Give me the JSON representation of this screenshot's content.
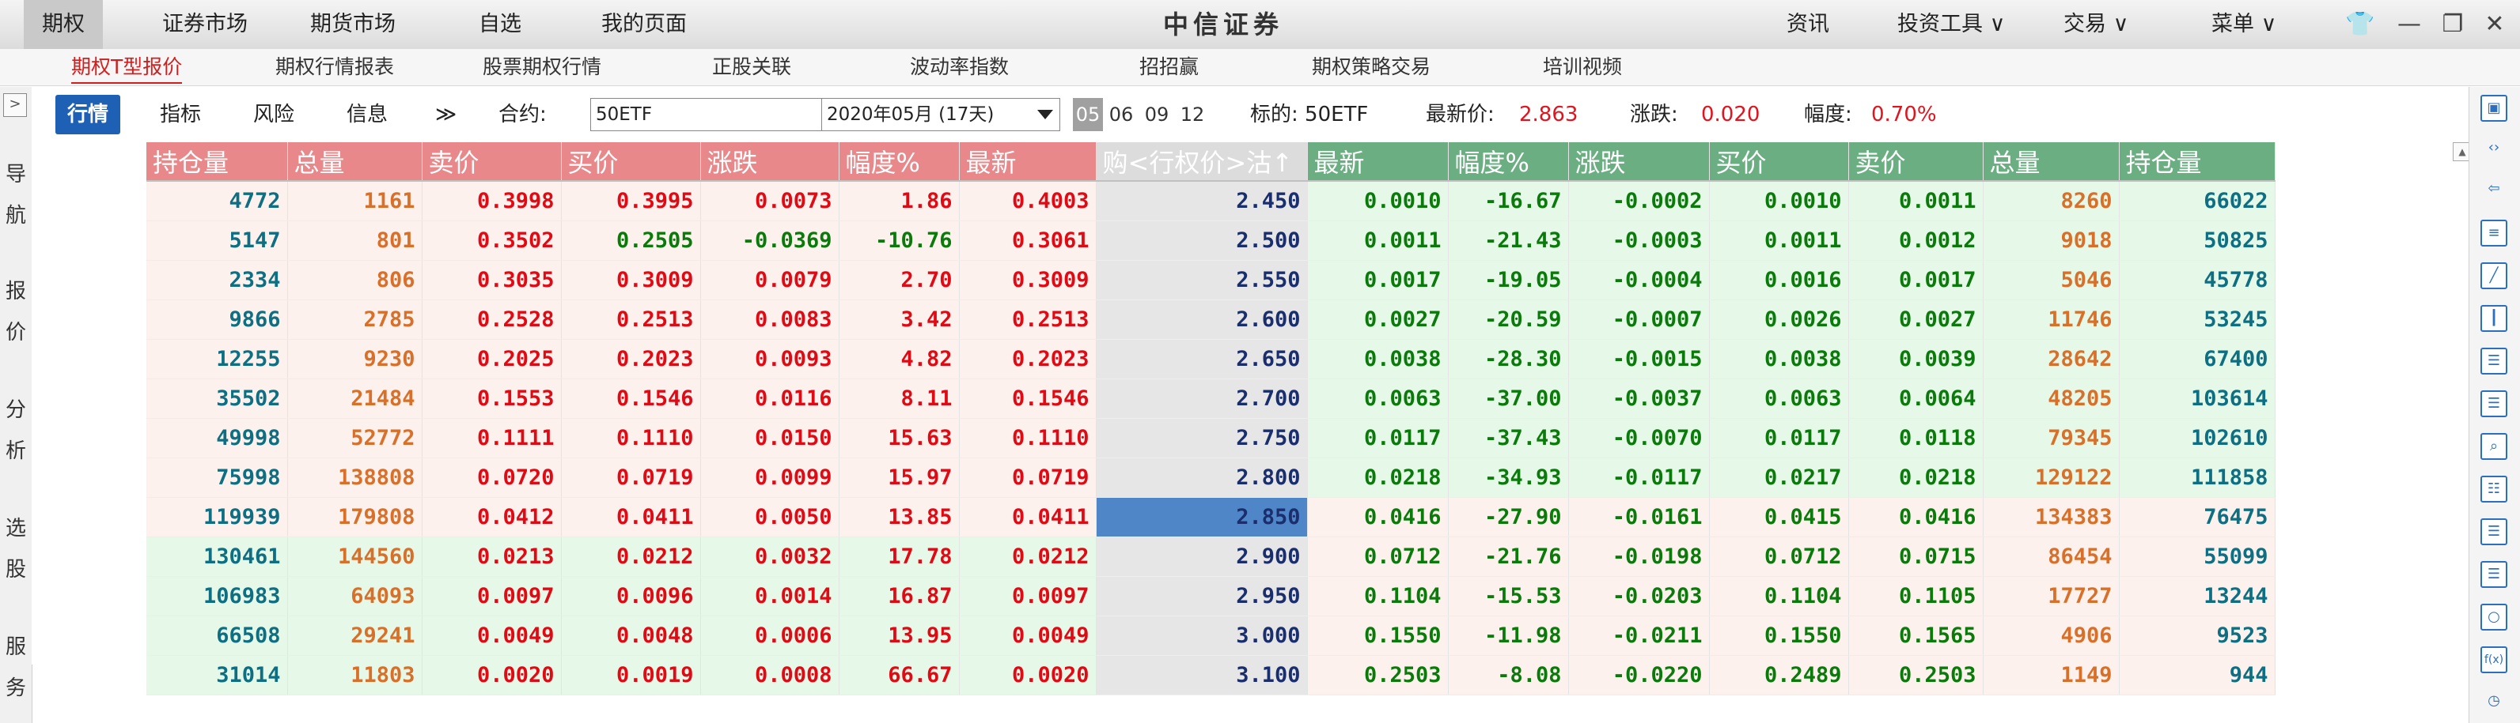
{
  "topbar": {
    "items": [
      "期权",
      "证券市场",
      "期货市场",
      "自选",
      "我的页面"
    ],
    "brand": "中信证券",
    "right_items": [
      "资讯",
      "投资工具 ∨",
      "交易 ∨",
      "菜单 ∨"
    ]
  },
  "tabs": [
    "期权T型报价",
    "期权行情报表",
    "股票期权行情",
    "正股关联",
    "波动率指数",
    "招招赢",
    "期权策略交易",
    "培训视频"
  ],
  "toolbar": {
    "tab_quote": "行情",
    "tab_indicator": "指标",
    "tab_risk": "风险",
    "tab_info": "信息",
    "more": "≫",
    "contract_label": "合约:",
    "contract_value": "50ETF",
    "expiry_value": "2020年05月 (17天)",
    "months": [
      "05",
      "06",
      "09",
      "12"
    ],
    "underlying_label": "标的: 50ETF",
    "latest_label": "最新价:",
    "latest_value": "2.863",
    "change_label": "涨跌:",
    "change_value": "0.020",
    "pct_label": "幅度:",
    "pct_value": "0.70%"
  },
  "leftnav": [
    "导",
    "航",
    "报",
    "价",
    "分",
    "析",
    "选",
    "股",
    "服",
    "务"
  ],
  "headers": {
    "call": [
      "持仓量",
      "总量",
      "卖价",
      "买价",
      "涨跌",
      "幅度%",
      "最新"
    ],
    "mid": "购<行权价>沽↑",
    "put": [
      "最新",
      "幅度%",
      "涨跌",
      "买价",
      "卖价",
      "总量",
      "持仓量"
    ]
  },
  "rows": [
    {
      "c": [
        "4772",
        "1161",
        "0.3998",
        "0.3995",
        "0.0073",
        "1.86",
        "0.4003"
      ],
      "k": "2.450",
      "p": [
        "0.0010",
        "-16.67",
        "-0.0002",
        "0.0010",
        "0.0011",
        "8260",
        "66022"
      ]
    },
    {
      "c": [
        "5147",
        "801",
        "0.3502",
        "0.2505",
        "-0.0369",
        "-10.76",
        "0.3061"
      ],
      "k": "2.500",
      "p": [
        "0.0011",
        "-21.43",
        "-0.0003",
        "0.0011",
        "0.0012",
        "9018",
        "50825"
      ]
    },
    {
      "c": [
        "2334",
        "806",
        "0.3035",
        "0.3009",
        "0.0079",
        "2.70",
        "0.3009"
      ],
      "k": "2.550",
      "p": [
        "0.0017",
        "-19.05",
        "-0.0004",
        "0.0016",
        "0.0017",
        "5046",
        "45778"
      ]
    },
    {
      "c": [
        "9866",
        "2785",
        "0.2528",
        "0.2513",
        "0.0083",
        "3.42",
        "0.2513"
      ],
      "k": "2.600",
      "p": [
        "0.0027",
        "-20.59",
        "-0.0007",
        "0.0026",
        "0.0027",
        "11746",
        "53245"
      ]
    },
    {
      "c": [
        "12255",
        "9230",
        "0.2025",
        "0.2023",
        "0.0093",
        "4.82",
        "0.2023"
      ],
      "k": "2.650",
      "p": [
        "0.0038",
        "-28.30",
        "-0.0015",
        "0.0038",
        "0.0039",
        "28642",
        "67400"
      ]
    },
    {
      "c": [
        "35502",
        "21484",
        "0.1553",
        "0.1546",
        "0.0116",
        "8.11",
        "0.1546"
      ],
      "k": "2.700",
      "p": [
        "0.0063",
        "-37.00",
        "-0.0037",
        "0.0063",
        "0.0064",
        "48205",
        "103614"
      ]
    },
    {
      "c": [
        "49998",
        "52772",
        "0.1111",
        "0.1110",
        "0.0150",
        "15.63",
        "0.1110"
      ],
      "k": "2.750",
      "p": [
        "0.0117",
        "-37.43",
        "-0.0070",
        "0.0117",
        "0.0118",
        "79345",
        "102610"
      ]
    },
    {
      "c": [
        "75998",
        "138808",
        "0.0720",
        "0.0719",
        "0.0099",
        "15.97",
        "0.0719"
      ],
      "k": "2.800",
      "p": [
        "0.0218",
        "-34.93",
        "-0.0117",
        "0.0217",
        "0.0218",
        "129122",
        "111858"
      ]
    },
    {
      "c": [
        "119939",
        "179808",
        "0.0412",
        "0.0411",
        "0.0050",
        "13.85",
        "0.0411"
      ],
      "k": "2.850",
      "p": [
        "0.0416",
        "-27.90",
        "-0.0161",
        "0.0415",
        "0.0416",
        "134383",
        "76475"
      ]
    },
    {
      "c": [
        "130461",
        "144560",
        "0.0213",
        "0.0212",
        "0.0032",
        "17.78",
        "0.0212"
      ],
      "k": "2.900",
      "p": [
        "0.0712",
        "-21.76",
        "-0.0198",
        "0.0712",
        "0.0715",
        "86454",
        "55099"
      ]
    },
    {
      "c": [
        "106983",
        "64093",
        "0.0097",
        "0.0096",
        "0.0014",
        "16.87",
        "0.0097"
      ],
      "k": "2.950",
      "p": [
        "0.1104",
        "-15.53",
        "-0.0203",
        "0.1104",
        "0.1105",
        "17727",
        "13244"
      ]
    },
    {
      "c": [
        "66508",
        "29241",
        "0.0049",
        "0.0048",
        "0.0006",
        "13.95",
        "0.0049"
      ],
      "k": "3.000",
      "p": [
        "0.1550",
        "-11.98",
        "-0.0211",
        "0.1550",
        "0.1565",
        "4906",
        "9523"
      ]
    },
    {
      "c": [
        "31014",
        "11803",
        "0.0020",
        "0.0019",
        "0.0008",
        "66.67",
        "0.0020"
      ],
      "k": "3.100",
      "p": [
        "0.2503",
        "-8.08",
        "-0.0220",
        "0.2489",
        "0.2503",
        "1149",
        "944"
      ]
    }
  ],
  "atm_strike": "2.850",
  "colors": {
    "accent_blue": "#1e60b4",
    "call_header": "#e8888a",
    "put_header": "#6aae82",
    "up_red": "#e00a14",
    "down_green": "#108a10"
  }
}
